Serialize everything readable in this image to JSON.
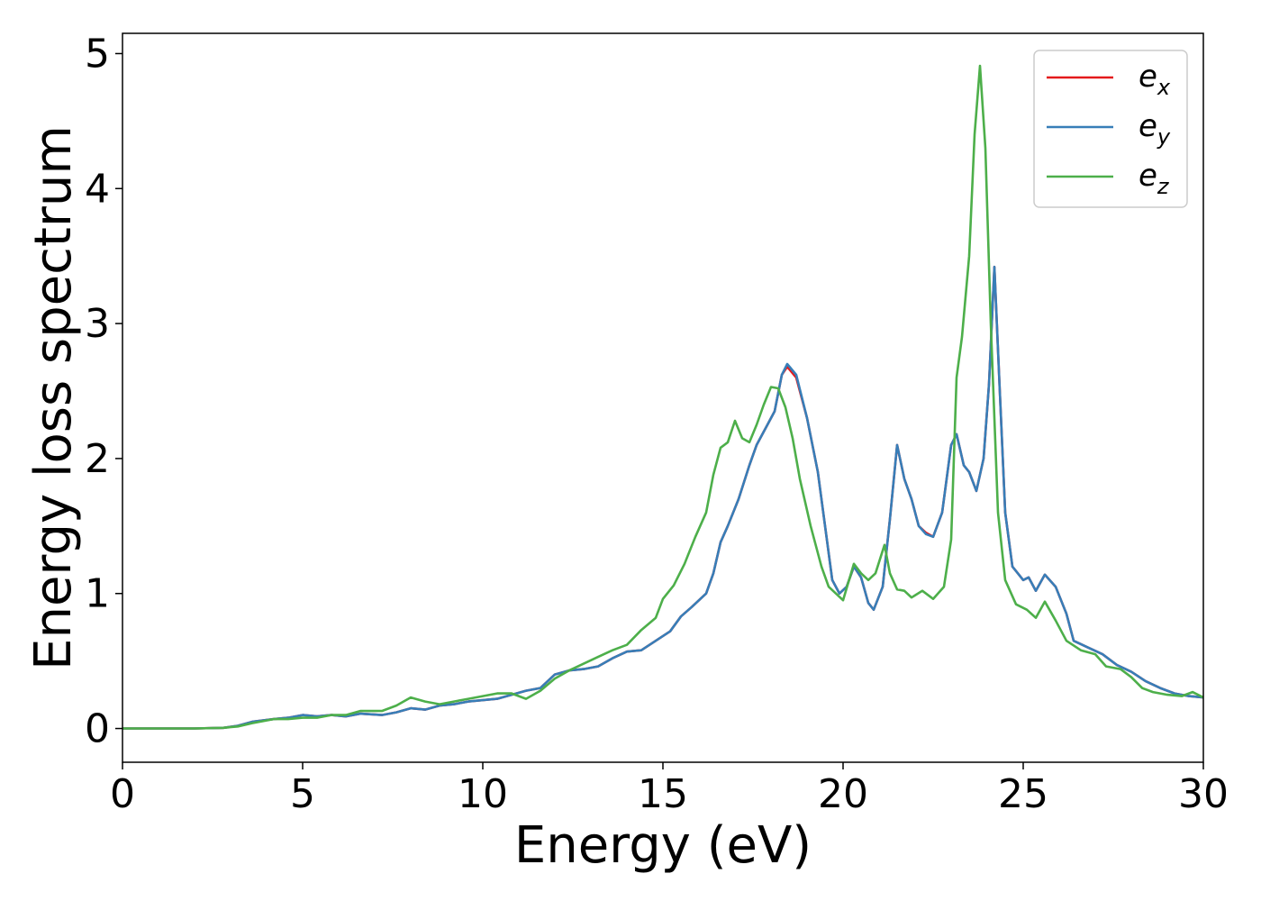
{
  "chart_data": {
    "type": "line",
    "xlabel": "Energy (eV)",
    "ylabel": "Energy loss spectrum",
    "xlim": [
      0,
      30
    ],
    "ylim": [
      -0.25,
      5.15
    ],
    "xticks": [
      0,
      5,
      10,
      15,
      20,
      25,
      30
    ],
    "yticks": [
      0,
      1,
      2,
      3,
      4,
      5
    ],
    "grid": false,
    "legend_position": "top-right",
    "series": [
      {
        "name": "e_x",
        "base": "e",
        "sub": "x",
        "color": "#e41a1c",
        "points": [
          [
            0,
            0
          ],
          [
            1,
            0
          ],
          [
            2,
            0
          ],
          [
            2.8,
            0.005
          ],
          [
            3.2,
            0.02
          ],
          [
            3.6,
            0.05
          ],
          [
            4.2,
            0.07
          ],
          [
            4.6,
            0.08
          ],
          [
            5,
            0.1
          ],
          [
            5.4,
            0.09
          ],
          [
            5.8,
            0.1
          ],
          [
            6.2,
            0.09
          ],
          [
            6.6,
            0.11
          ],
          [
            7.2,
            0.1
          ],
          [
            7.6,
            0.12
          ],
          [
            8,
            0.15
          ],
          [
            8.4,
            0.14
          ],
          [
            8.8,
            0.17
          ],
          [
            9.2,
            0.18
          ],
          [
            9.6,
            0.2
          ],
          [
            10,
            0.21
          ],
          [
            10.4,
            0.22
          ],
          [
            10.8,
            0.25
          ],
          [
            11.2,
            0.28
          ],
          [
            11.6,
            0.3
          ],
          [
            11.8,
            0.35
          ],
          [
            12,
            0.4
          ],
          [
            12.4,
            0.43
          ],
          [
            12.8,
            0.44
          ],
          [
            13.2,
            0.46
          ],
          [
            13.6,
            0.52
          ],
          [
            14,
            0.57
          ],
          [
            14.4,
            0.58
          ],
          [
            14.8,
            0.65
          ],
          [
            15.2,
            0.72
          ],
          [
            15.5,
            0.83
          ],
          [
            15.8,
            0.9
          ],
          [
            16.2,
            1.0
          ],
          [
            16.4,
            1.15
          ],
          [
            16.6,
            1.38
          ],
          [
            16.8,
            1.5
          ],
          [
            17.1,
            1.7
          ],
          [
            17.4,
            1.95
          ],
          [
            17.6,
            2.1
          ],
          [
            17.9,
            2.25
          ],
          [
            18.1,
            2.35
          ],
          [
            18.3,
            2.62
          ],
          [
            18.45,
            2.68
          ],
          [
            18.7,
            2.6
          ],
          [
            19.0,
            2.3
          ],
          [
            19.3,
            1.9
          ],
          [
            19.5,
            1.5
          ],
          [
            19.7,
            1.1
          ],
          [
            19.9,
            1.0
          ],
          [
            20.1,
            1.05
          ],
          [
            20.3,
            1.2
          ],
          [
            20.5,
            1.12
          ],
          [
            20.7,
            0.93
          ],
          [
            20.85,
            0.88
          ],
          [
            21.1,
            1.05
          ],
          [
            21.3,
            1.55
          ],
          [
            21.5,
            2.1
          ],
          [
            21.7,
            1.85
          ],
          [
            21.9,
            1.7
          ],
          [
            22.1,
            1.5
          ],
          [
            22.3,
            1.45
          ],
          [
            22.5,
            1.42
          ],
          [
            22.75,
            1.6
          ],
          [
            23.0,
            2.1
          ],
          [
            23.15,
            2.18
          ],
          [
            23.35,
            1.95
          ],
          [
            23.5,
            1.9
          ],
          [
            23.7,
            1.76
          ],
          [
            23.9,
            2.0
          ],
          [
            24.05,
            2.55
          ],
          [
            24.2,
            3.42
          ],
          [
            24.35,
            2.5
          ],
          [
            24.5,
            1.6
          ],
          [
            24.7,
            1.2
          ],
          [
            25.0,
            1.1
          ],
          [
            25.15,
            1.12
          ],
          [
            25.35,
            1.02
          ],
          [
            25.6,
            1.14
          ],
          [
            25.9,
            1.05
          ],
          [
            26.2,
            0.85
          ],
          [
            26.4,
            0.65
          ],
          [
            26.8,
            0.6
          ],
          [
            27.2,
            0.55
          ],
          [
            27.6,
            0.47
          ],
          [
            28.0,
            0.42
          ],
          [
            28.4,
            0.35
          ],
          [
            28.8,
            0.3
          ],
          [
            29.2,
            0.26
          ],
          [
            29.6,
            0.24
          ],
          [
            30,
            0.23
          ]
        ]
      },
      {
        "name": "e_y",
        "base": "e",
        "sub": "y",
        "color": "#377eb8",
        "points": [
          [
            0,
            0
          ],
          [
            1,
            0
          ],
          [
            2,
            0
          ],
          [
            2.8,
            0.005
          ],
          [
            3.2,
            0.02
          ],
          [
            3.6,
            0.05
          ],
          [
            4.2,
            0.07
          ],
          [
            4.6,
            0.08
          ],
          [
            5,
            0.1
          ],
          [
            5.4,
            0.09
          ],
          [
            5.8,
            0.1
          ],
          [
            6.2,
            0.09
          ],
          [
            6.6,
            0.11
          ],
          [
            7.2,
            0.1
          ],
          [
            7.6,
            0.12
          ],
          [
            8,
            0.15
          ],
          [
            8.4,
            0.14
          ],
          [
            8.8,
            0.17
          ],
          [
            9.2,
            0.18
          ],
          [
            9.6,
            0.2
          ],
          [
            10,
            0.21
          ],
          [
            10.4,
            0.22
          ],
          [
            10.8,
            0.25
          ],
          [
            11.2,
            0.28
          ],
          [
            11.6,
            0.3
          ],
          [
            11.8,
            0.35
          ],
          [
            12,
            0.4
          ],
          [
            12.4,
            0.43
          ],
          [
            12.8,
            0.44
          ],
          [
            13.2,
            0.46
          ],
          [
            13.6,
            0.52
          ],
          [
            14,
            0.57
          ],
          [
            14.4,
            0.58
          ],
          [
            14.8,
            0.65
          ],
          [
            15.2,
            0.72
          ],
          [
            15.5,
            0.83
          ],
          [
            15.8,
            0.9
          ],
          [
            16.2,
            1.0
          ],
          [
            16.4,
            1.15
          ],
          [
            16.6,
            1.38
          ],
          [
            16.8,
            1.5
          ],
          [
            17.1,
            1.7
          ],
          [
            17.4,
            1.95
          ],
          [
            17.6,
            2.1
          ],
          [
            17.9,
            2.25
          ],
          [
            18.1,
            2.35
          ],
          [
            18.3,
            2.62
          ],
          [
            18.45,
            2.7
          ],
          [
            18.7,
            2.62
          ],
          [
            19.0,
            2.3
          ],
          [
            19.3,
            1.9
          ],
          [
            19.5,
            1.5
          ],
          [
            19.7,
            1.1
          ],
          [
            19.9,
            1.0
          ],
          [
            20.1,
            1.05
          ],
          [
            20.3,
            1.2
          ],
          [
            20.5,
            1.12
          ],
          [
            20.7,
            0.93
          ],
          [
            20.85,
            0.88
          ],
          [
            21.1,
            1.05
          ],
          [
            21.3,
            1.55
          ],
          [
            21.5,
            2.1
          ],
          [
            21.7,
            1.85
          ],
          [
            21.9,
            1.7
          ],
          [
            22.1,
            1.5
          ],
          [
            22.3,
            1.44
          ],
          [
            22.5,
            1.42
          ],
          [
            22.75,
            1.6
          ],
          [
            23.0,
            2.1
          ],
          [
            23.15,
            2.18
          ],
          [
            23.35,
            1.95
          ],
          [
            23.5,
            1.9
          ],
          [
            23.7,
            1.76
          ],
          [
            23.9,
            2.0
          ],
          [
            24.05,
            2.55
          ],
          [
            24.2,
            3.42
          ],
          [
            24.35,
            2.5
          ],
          [
            24.5,
            1.6
          ],
          [
            24.7,
            1.2
          ],
          [
            25.0,
            1.1
          ],
          [
            25.15,
            1.12
          ],
          [
            25.35,
            1.02
          ],
          [
            25.6,
            1.14
          ],
          [
            25.9,
            1.05
          ],
          [
            26.2,
            0.85
          ],
          [
            26.4,
            0.65
          ],
          [
            26.8,
            0.6
          ],
          [
            27.2,
            0.55
          ],
          [
            27.6,
            0.47
          ],
          [
            28.0,
            0.42
          ],
          [
            28.4,
            0.35
          ],
          [
            28.8,
            0.3
          ],
          [
            29.2,
            0.26
          ],
          [
            29.6,
            0.24
          ],
          [
            30,
            0.23
          ]
        ]
      },
      {
        "name": "e_z",
        "base": "e",
        "sub": "z",
        "color": "#4daf4a",
        "points": [
          [
            0,
            0
          ],
          [
            1,
            0
          ],
          [
            2,
            0
          ],
          [
            2.8,
            0.005
          ],
          [
            3.2,
            0.015
          ],
          [
            3.6,
            0.04
          ],
          [
            4.2,
            0.07
          ],
          [
            4.6,
            0.07
          ],
          [
            5,
            0.08
          ],
          [
            5.4,
            0.08
          ],
          [
            5.8,
            0.1
          ],
          [
            6.2,
            0.1
          ],
          [
            6.6,
            0.13
          ],
          [
            7.2,
            0.13
          ],
          [
            7.6,
            0.17
          ],
          [
            8,
            0.23
          ],
          [
            8.4,
            0.2
          ],
          [
            8.8,
            0.18
          ],
          [
            9.2,
            0.2
          ],
          [
            9.6,
            0.22
          ],
          [
            10,
            0.24
          ],
          [
            10.4,
            0.26
          ],
          [
            10.8,
            0.26
          ],
          [
            11.2,
            0.22
          ],
          [
            11.6,
            0.28
          ],
          [
            12,
            0.37
          ],
          [
            12.4,
            0.43
          ],
          [
            12.8,
            0.48
          ],
          [
            13.2,
            0.53
          ],
          [
            13.6,
            0.58
          ],
          [
            14,
            0.62
          ],
          [
            14.4,
            0.73
          ],
          [
            14.8,
            0.82
          ],
          [
            15.0,
            0.96
          ],
          [
            15.3,
            1.06
          ],
          [
            15.6,
            1.22
          ],
          [
            15.9,
            1.42
          ],
          [
            16.2,
            1.6
          ],
          [
            16.4,
            1.88
          ],
          [
            16.6,
            2.08
          ],
          [
            16.8,
            2.12
          ],
          [
            17.0,
            2.28
          ],
          [
            17.2,
            2.15
          ],
          [
            17.4,
            2.12
          ],
          [
            17.6,
            2.25
          ],
          [
            17.8,
            2.4
          ],
          [
            18.0,
            2.53
          ],
          [
            18.2,
            2.52
          ],
          [
            18.4,
            2.38
          ],
          [
            18.6,
            2.15
          ],
          [
            18.8,
            1.85
          ],
          [
            19.1,
            1.5
          ],
          [
            19.4,
            1.2
          ],
          [
            19.6,
            1.05
          ],
          [
            19.8,
            1.0
          ],
          [
            20.0,
            0.95
          ],
          [
            20.3,
            1.22
          ],
          [
            20.5,
            1.15
          ],
          [
            20.7,
            1.1
          ],
          [
            20.9,
            1.15
          ],
          [
            21.15,
            1.36
          ],
          [
            21.3,
            1.15
          ],
          [
            21.5,
            1.03
          ],
          [
            21.7,
            1.02
          ],
          [
            21.9,
            0.97
          ],
          [
            22.2,
            1.02
          ],
          [
            22.5,
            0.96
          ],
          [
            22.8,
            1.05
          ],
          [
            23.0,
            1.4
          ],
          [
            23.15,
            2.6
          ],
          [
            23.3,
            2.9
          ],
          [
            23.5,
            3.5
          ],
          [
            23.65,
            4.4
          ],
          [
            23.8,
            4.91
          ],
          [
            23.95,
            4.3
          ],
          [
            24.1,
            3.0
          ],
          [
            24.3,
            1.6
          ],
          [
            24.5,
            1.1
          ],
          [
            24.8,
            0.92
          ],
          [
            25.1,
            0.88
          ],
          [
            25.35,
            0.82
          ],
          [
            25.6,
            0.94
          ],
          [
            25.9,
            0.8
          ],
          [
            26.2,
            0.65
          ],
          [
            26.6,
            0.58
          ],
          [
            27.0,
            0.55
          ],
          [
            27.3,
            0.46
          ],
          [
            27.7,
            0.44
          ],
          [
            28.0,
            0.38
          ],
          [
            28.3,
            0.3
          ],
          [
            28.6,
            0.27
          ],
          [
            29.0,
            0.25
          ],
          [
            29.4,
            0.24
          ],
          [
            29.7,
            0.27
          ],
          [
            30,
            0.23
          ]
        ]
      }
    ]
  }
}
